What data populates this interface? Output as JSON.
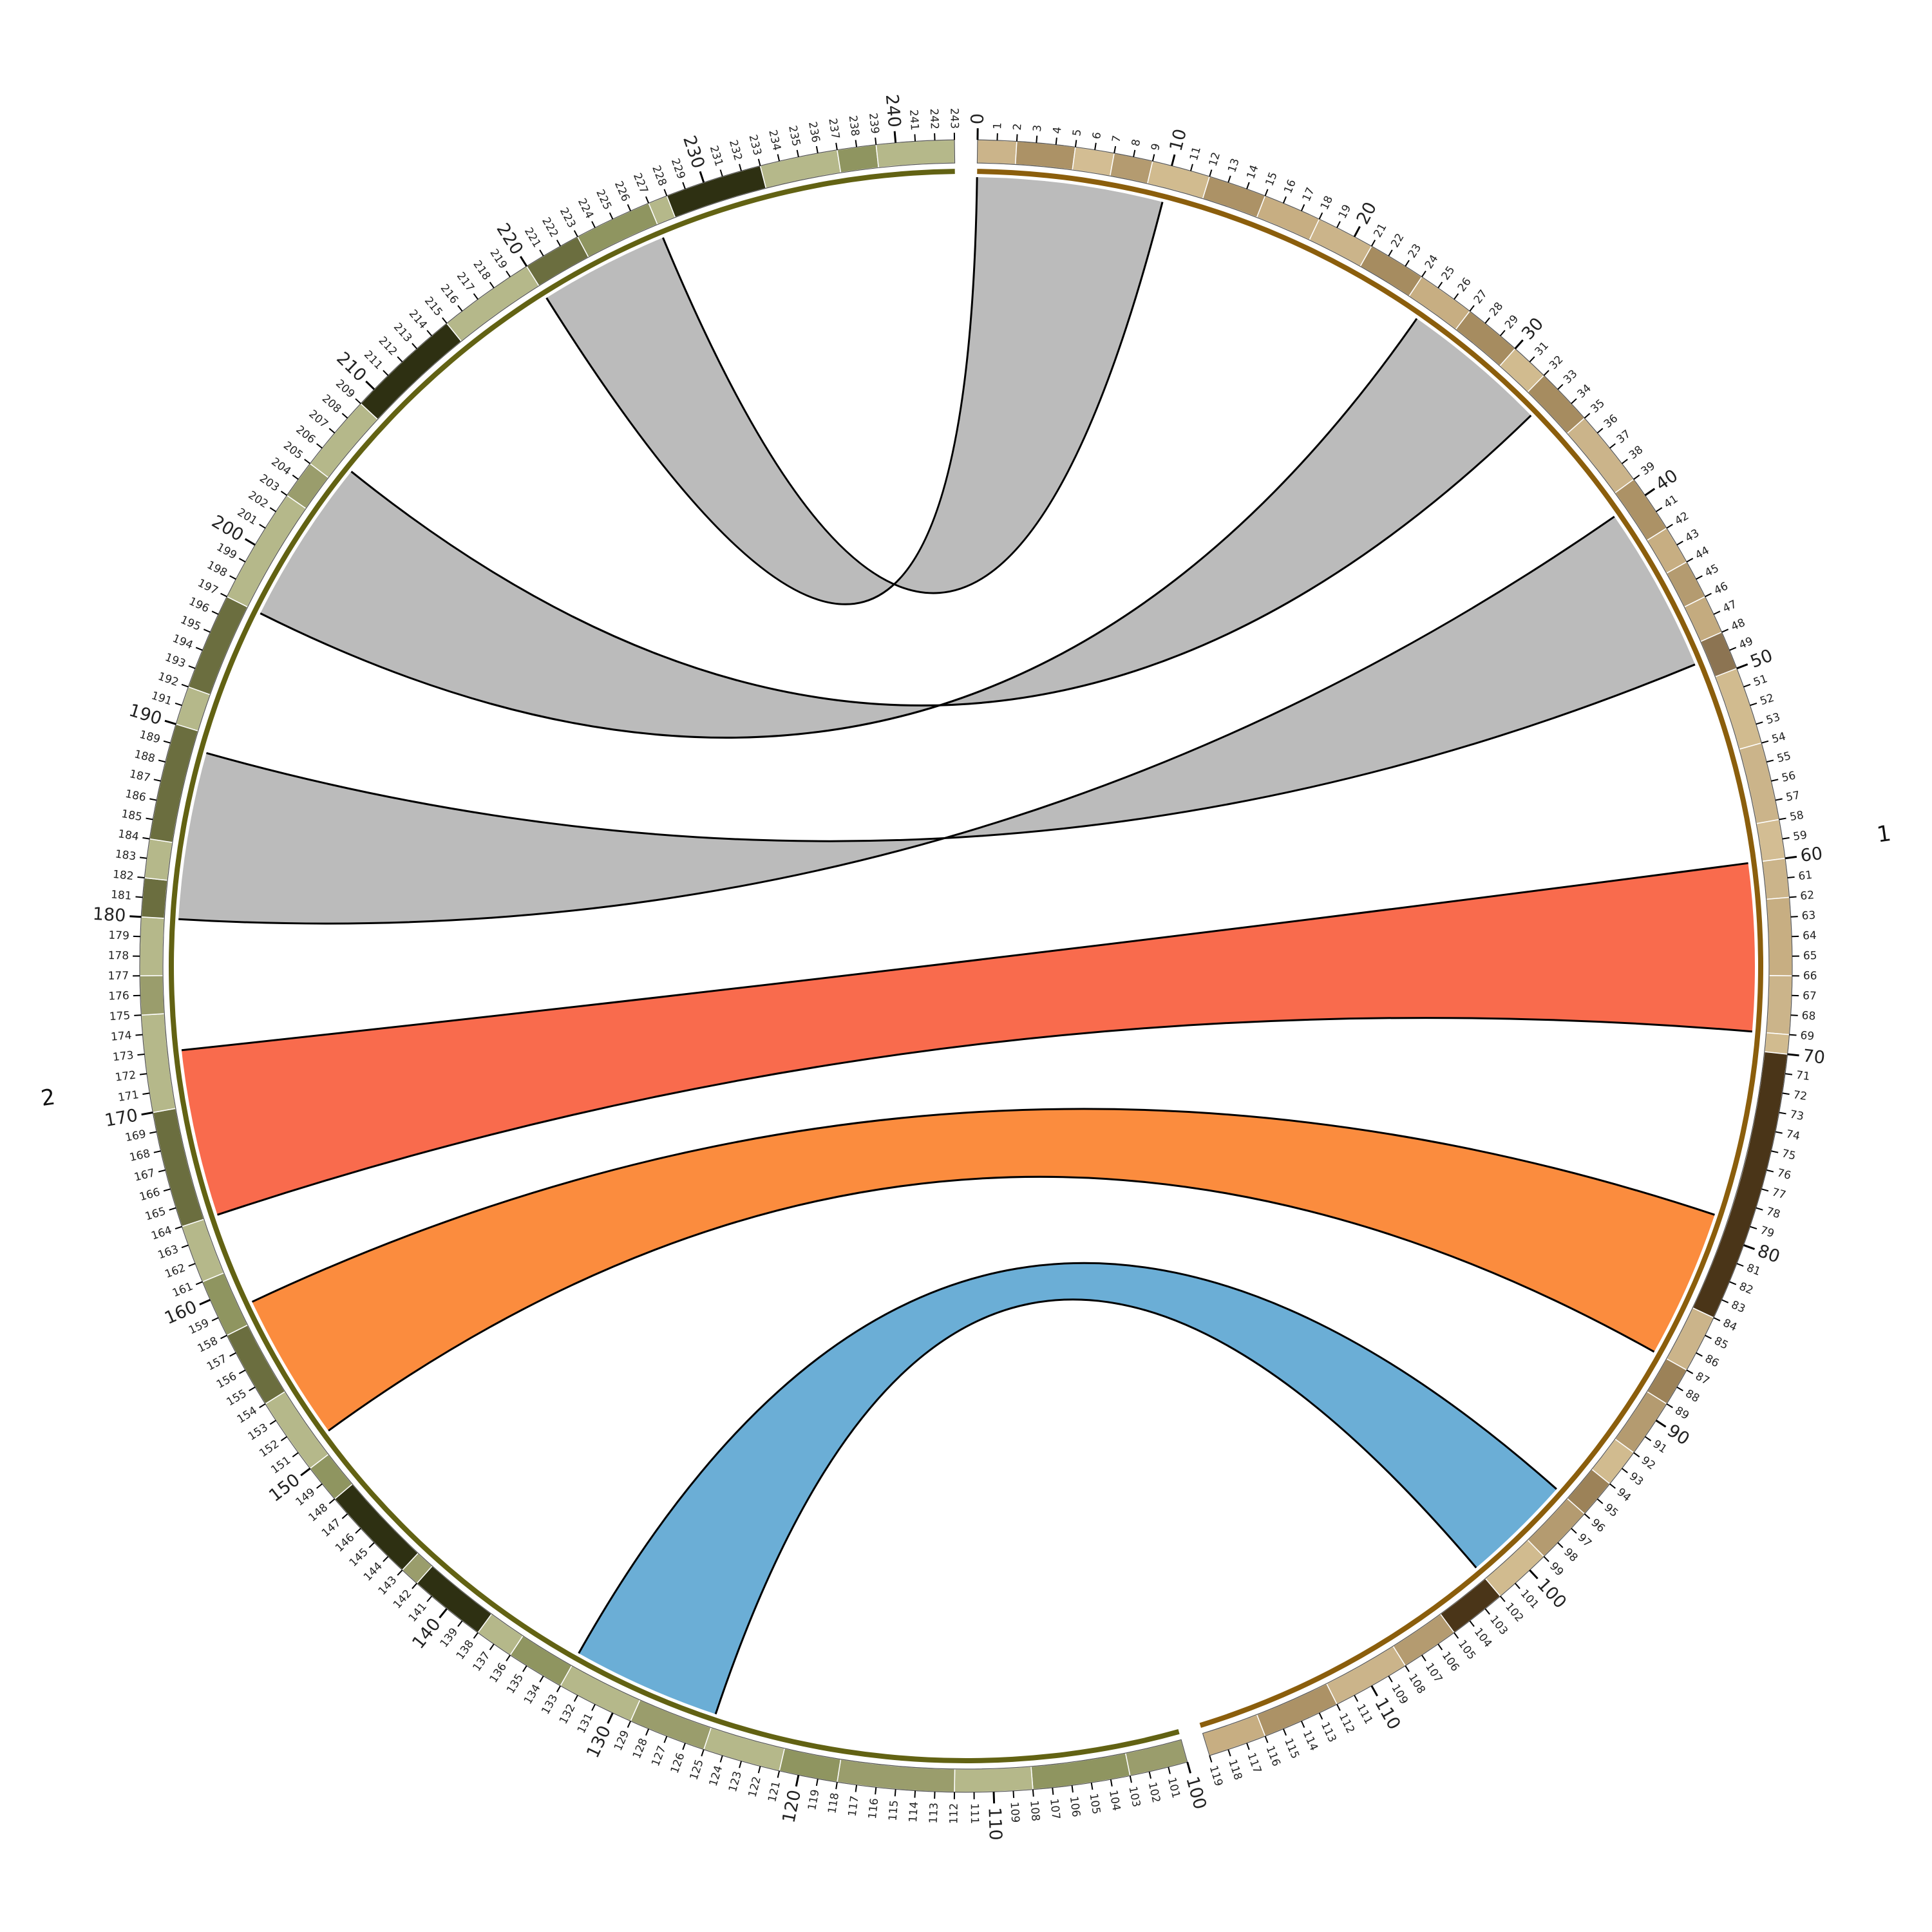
{
  "chart_data": {
    "type": "circos",
    "chromosomes": [
      {
        "name": "1",
        "start": 0,
        "end": 119,
        "bar_color": "#8b5e0c",
        "label_every": 1,
        "major_every": 10,
        "bands": [
          {
            "start": 0,
            "end": 2,
            "color": "#cbb48a"
          },
          {
            "start": 2,
            "end": 5,
            "color": "#ac9266"
          },
          {
            "start": 5,
            "end": 7,
            "color": "#d3bd93"
          },
          {
            "start": 7,
            "end": 9,
            "color": "#b49b70"
          },
          {
            "start": 9,
            "end": 12,
            "color": "#d1bb8f"
          },
          {
            "start": 12,
            "end": 15,
            "color": "#ac9266"
          },
          {
            "start": 15,
            "end": 18,
            "color": "#c7ae82"
          },
          {
            "start": 18,
            "end": 21,
            "color": "#cbb48a"
          },
          {
            "start": 21,
            "end": 24,
            "color": "#a68c60"
          },
          {
            "start": 24,
            "end": 27,
            "color": "#c7ae82"
          },
          {
            "start": 27,
            "end": 30,
            "color": "#a68c60"
          },
          {
            "start": 30,
            "end": 32,
            "color": "#d1bb8f"
          },
          {
            "start": 32,
            "end": 35,
            "color": "#a68c60"
          },
          {
            "start": 35,
            "end": 39,
            "color": "#cbb48a"
          },
          {
            "start": 39,
            "end": 42,
            "color": "#ac9266"
          },
          {
            "start": 42,
            "end": 44,
            "color": "#c7ae82"
          },
          {
            "start": 44,
            "end": 46,
            "color": "#b49b70"
          },
          {
            "start": 46,
            "end": 48,
            "color": "#c4ab7f"
          },
          {
            "start": 48,
            "end": 50,
            "color": "#8c7452"
          },
          {
            "start": 50,
            "end": 54,
            "color": "#d1bb8f"
          },
          {
            "start": 54,
            "end": 58,
            "color": "#cbb48a"
          },
          {
            "start": 58,
            "end": 60,
            "color": "#d3bd93"
          },
          {
            "start": 60,
            "end": 62,
            "color": "#cbb48a"
          },
          {
            "start": 62,
            "end": 66,
            "color": "#c7ae82"
          },
          {
            "start": 66,
            "end": 69,
            "color": "#cbb48a"
          },
          {
            "start": 69,
            "end": 70,
            "color": "#d1bb8f"
          },
          {
            "start": 70,
            "end": 84,
            "color": "#4a3518"
          },
          {
            "start": 84,
            "end": 87,
            "color": "#cbb48a"
          },
          {
            "start": 87,
            "end": 89,
            "color": "#9c8258"
          },
          {
            "start": 89,
            "end": 92,
            "color": "#b49b70"
          },
          {
            "start": 92,
            "end": 94,
            "color": "#d1bb8f"
          },
          {
            "start": 94,
            "end": 96,
            "color": "#9c8258"
          },
          {
            "start": 96,
            "end": 99,
            "color": "#b49b70"
          },
          {
            "start": 99,
            "end": 102,
            "color": "#d1bb8f"
          },
          {
            "start": 102,
            "end": 105,
            "color": "#4a3518"
          },
          {
            "start": 105,
            "end": 108,
            "color": "#b49b70"
          },
          {
            "start": 108,
            "end": 112,
            "color": "#cbb48a"
          },
          {
            "start": 112,
            "end": 116,
            "color": "#ac9266"
          },
          {
            "start": 116,
            "end": 119,
            "color": "#c7ae82"
          }
        ]
      },
      {
        "name": "2",
        "start": 100,
        "end": 243,
        "bar_color": "#626213",
        "label_every": 1,
        "major_every": 10,
        "bands": [
          {
            "start": 100,
            "end": 103,
            "color": "#9a9d6c"
          },
          {
            "start": 103,
            "end": 108,
            "color": "#8f9560"
          },
          {
            "start": 108,
            "end": 112,
            "color": "#b5b88a"
          },
          {
            "start": 112,
            "end": 118,
            "color": "#9a9d6c"
          },
          {
            "start": 118,
            "end": 121,
            "color": "#8f9560"
          },
          {
            "start": 121,
            "end": 125,
            "color": "#b5b88a"
          },
          {
            "start": 125,
            "end": 129,
            "color": "#9a9d6c"
          },
          {
            "start": 129,
            "end": 133,
            "color": "#b5b88a"
          },
          {
            "start": 133,
            "end": 136,
            "color": "#8f9560"
          },
          {
            "start": 136,
            "end": 138,
            "color": "#b5b88a"
          },
          {
            "start": 138,
            "end": 142,
            "color": "#2e3012"
          },
          {
            "start": 142,
            "end": 143,
            "color": "#9a9d6c"
          },
          {
            "start": 143,
            "end": 148,
            "color": "#2e3012"
          },
          {
            "start": 148,
            "end": 150,
            "color": "#8f9560"
          },
          {
            "start": 150,
            "end": 154,
            "color": "#b5b88a"
          },
          {
            "start": 154,
            "end": 158,
            "color": "#6b6e3f"
          },
          {
            "start": 158,
            "end": 161,
            "color": "#8f9560"
          },
          {
            "start": 161,
            "end": 164,
            "color": "#b5b88a"
          },
          {
            "start": 164,
            "end": 170,
            "color": "#6b6e3f"
          },
          {
            "start": 170,
            "end": 175,
            "color": "#b5b88a"
          },
          {
            "start": 175,
            "end": 177,
            "color": "#9a9d6c"
          },
          {
            "start": 177,
            "end": 180,
            "color": "#b5b88a"
          },
          {
            "start": 180,
            "end": 182,
            "color": "#6b6e3f"
          },
          {
            "start": 182,
            "end": 184,
            "color": "#b5b88a"
          },
          {
            "start": 184,
            "end": 190,
            "color": "#6b6e3f"
          },
          {
            "start": 190,
            "end": 192,
            "color": "#b5b88a"
          },
          {
            "start": 192,
            "end": 197,
            "color": "#6b6e3f"
          },
          {
            "start": 197,
            "end": 203,
            "color": "#b5b88a"
          },
          {
            "start": 203,
            "end": 205,
            "color": "#9a9d6c"
          },
          {
            "start": 205,
            "end": 209,
            "color": "#b5b88a"
          },
          {
            "start": 209,
            "end": 215,
            "color": "#2e3012"
          },
          {
            "start": 215,
            "end": 220,
            "color": "#b5b88a"
          },
          {
            "start": 220,
            "end": 223,
            "color": "#6b6e3f"
          },
          {
            "start": 223,
            "end": 227,
            "color": "#8f9560"
          },
          {
            "start": 227,
            "end": 228,
            "color": "#b5b88a"
          },
          {
            "start": 228,
            "end": 233,
            "color": "#2e3012"
          },
          {
            "start": 233,
            "end": 237,
            "color": "#b5b88a"
          },
          {
            "start": 237,
            "end": 239,
            "color": "#8f9560"
          },
          {
            "start": 239,
            "end": 243,
            "color": "#b5b88a"
          }
        ]
      }
    ],
    "links": [
      {
        "from_chrom": "1",
        "from": [
          69,
          60
        ],
        "to_chrom": "2",
        "to": [
          173,
          164
        ],
        "color": "#f96b4d",
        "outline": "#000000"
      },
      {
        "from_chrom": "1",
        "from": [
          79,
          87
        ],
        "to_chrom": "2",
        "to": [
          151,
          159
        ],
        "color": "#fb8c3e",
        "outline": "#000000"
      },
      {
        "from_chrom": "1",
        "from": [
          96,
          102
        ],
        "to_chrom": "2",
        "to": [
          125,
          133
        ],
        "color": "#6baed6",
        "outline": "#000000"
      },
      {
        "from_chrom": "1",
        "from": [
          40,
          49
        ],
        "to_chrom": "2",
        "to": [
          189,
          180
        ],
        "color": "#bbbbbb",
        "outline": "#000000"
      },
      {
        "from_chrom": "1",
        "from": [
          25,
          33
        ],
        "to_chrom": "2",
        "to": [
          206,
          197
        ],
        "color": "#bbbbbb",
        "outline": "#000000"
      },
      {
        "from_chrom": "1",
        "from": [
          0,
          10
        ],
        "to_chrom": "2",
        "to": [
          227,
          220
        ],
        "color": "#bbbbbb",
        "outline": "#000000"
      }
    ]
  }
}
